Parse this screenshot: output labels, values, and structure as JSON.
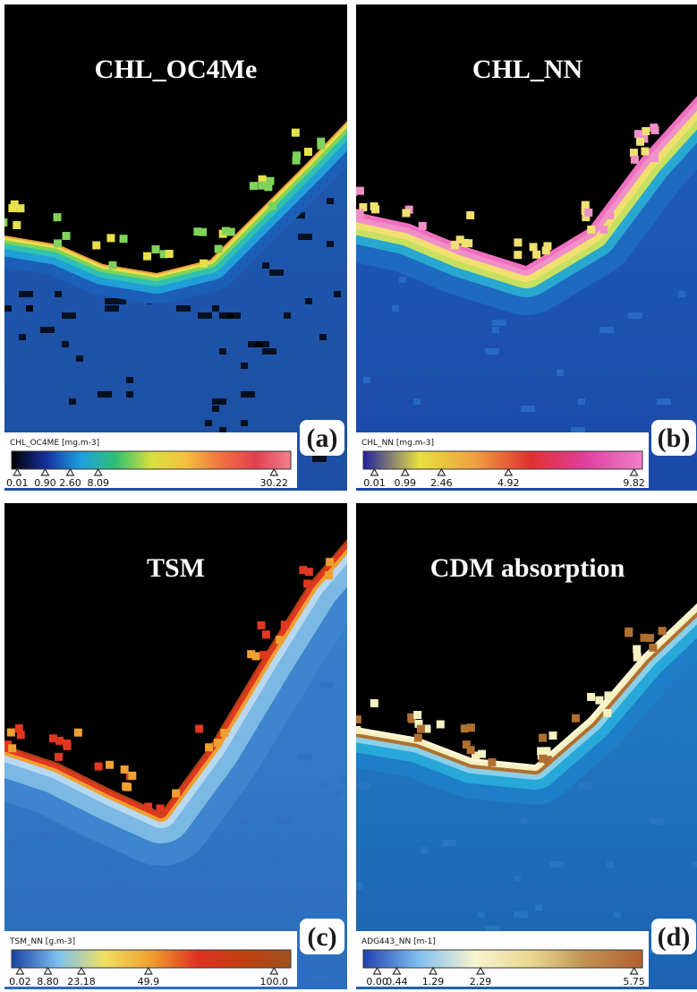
{
  "panels": [
    {
      "title": "CHL_OC4Me",
      "letter": "(a)",
      "colorbar": {
        "label": "CHL_OC4ME [mg.m-3]",
        "ticks": [
          "0.01",
          "0.90",
          "2.60",
          "8.09",
          "30.22"
        ]
      }
    },
    {
      "title": "CHL_NN",
      "letter": "(b)",
      "colorbar": {
        "label": "CHL_NN [mg.m-3]",
        "ticks": [
          "0.01",
          "0.99",
          "2.46",
          "4.92",
          "9.82"
        ]
      }
    },
    {
      "title": "TSM",
      "letter": "(c)",
      "colorbar": {
        "label": "TSM_NN [g.m-3]",
        "ticks": [
          "0.02",
          "8.80",
          "23.18",
          "49.9",
          "100.0"
        ]
      }
    },
    {
      "title": "CDM absorption",
      "letter": "(d)",
      "colorbar": {
        "label": "ADG443_NN [m-1]",
        "ticks": [
          "0.00",
          "0.44",
          "1.29",
          "2.29",
          "5.75"
        ]
      }
    }
  ]
}
